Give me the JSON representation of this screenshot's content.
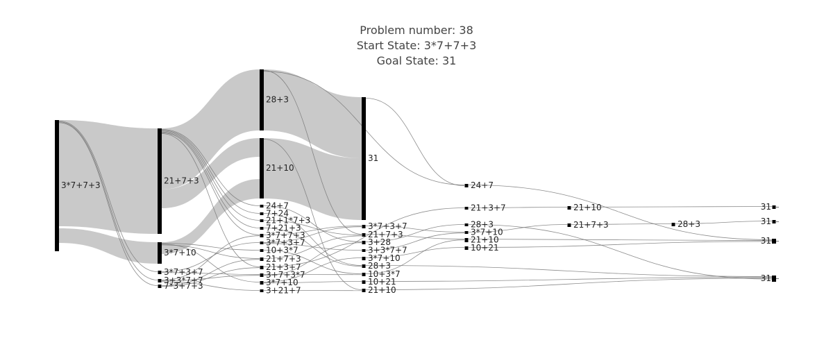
{
  "title": {
    "line1": "Problem number: 38",
    "line2": "Start State: 3*7+7+3",
    "line3": "Goal State: 31"
  },
  "colors": {
    "band": "#c9c9c9",
    "link_line": "#777777",
    "node_bar": "#000000",
    "label_text": "#222222"
  },
  "chart_data": {
    "type": "sankey",
    "columns": [
      [
        "3*7+7+3"
      ],
      [
        "21+7+3",
        "3*7+10",
        "3*7+3+7",
        "3+3*7+7",
        "7*3+7+3"
      ],
      [
        "28+3",
        "21+10",
        "24+7",
        "7+24",
        "21+1*7+3",
        "7+21+3",
        "3*7+7+3",
        "10+3*7",
        "3*7+3+7",
        "21+7+3",
        "21+3+7",
        "3+7+3*7",
        "3*7+10",
        "3+21+7"
      ],
      [
        "31",
        "3*7+3+7",
        "21+7+3",
        "3+28",
        "3+3*7+7",
        "3*7+10",
        "28+3",
        "10+3*7",
        "10+21",
        "21+10"
      ],
      [
        "24+7",
        "21+3+7",
        "28+3",
        "3*7+10",
        "21+10",
        "10+21"
      ],
      [
        "21+10",
        "21+7+3"
      ],
      [
        "28+3"
      ],
      [
        "31",
        "31",
        "31",
        "31"
      ]
    ],
    "dominant_flows": [
      {
        "source": "3*7+7+3",
        "target": "21+7+3",
        "weight": "large"
      },
      {
        "source": "3*7+7+3",
        "target": "3*7+10",
        "weight": "medium"
      },
      {
        "source": "21+7+3",
        "target": "28+3",
        "weight": "large"
      },
      {
        "source": "21+7+3",
        "target": "21+10",
        "weight": "large"
      },
      {
        "source": "3*7+10",
        "target": "21+10",
        "weight": "medium"
      },
      {
        "source": "28+3",
        "target": "31",
        "weight": "large"
      },
      {
        "source": "21+10",
        "target": "31",
        "weight": "large"
      }
    ]
  }
}
